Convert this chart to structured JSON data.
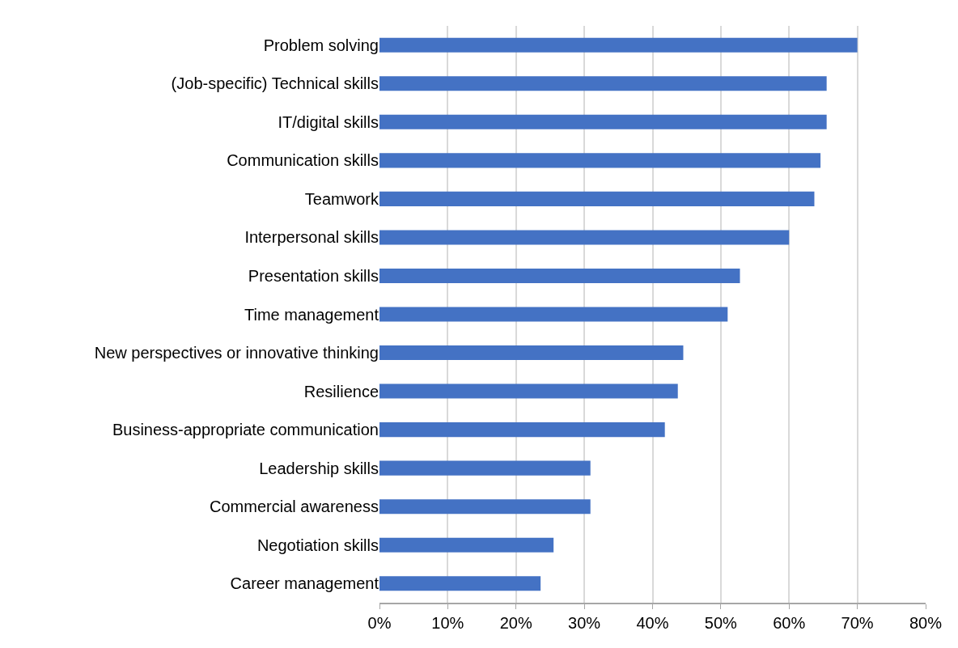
{
  "chart_data": {
    "type": "bar",
    "orientation": "horizontal",
    "categories": [
      "Problem solving",
      "(Job-specific) Technical skills",
      "IT/digital skills",
      "Communication skills",
      "Teamwork",
      "Interpersonal skills",
      "Presentation skills",
      "Time management",
      "New perspectives or innovative thinking",
      "Resilience",
      "Business-appropriate communication",
      "Leadership skills",
      "Commercial awareness",
      "Negotiation skills",
      "Career management"
    ],
    "values": [
      70,
      65.5,
      65.5,
      64.6,
      63.7,
      60,
      52.8,
      51,
      44.5,
      43.7,
      41.8,
      30.9,
      30.9,
      25.5,
      23.6
    ],
    "color": "#4472c4",
    "xlim": [
      0,
      80
    ],
    "xticks": [
      {
        "value": 0,
        "label": "0%"
      },
      {
        "value": 10,
        "label": "10%"
      },
      {
        "value": 20,
        "label": "20%"
      },
      {
        "value": 30,
        "label": "30%"
      },
      {
        "value": 40,
        "label": "40%"
      },
      {
        "value": 50,
        "label": "50%"
      },
      {
        "value": 60,
        "label": "60%"
      },
      {
        "value": 70,
        "label": "70%"
      },
      {
        "value": 80,
        "label": "80%"
      }
    ],
    "grid": "x",
    "legend": false
  }
}
